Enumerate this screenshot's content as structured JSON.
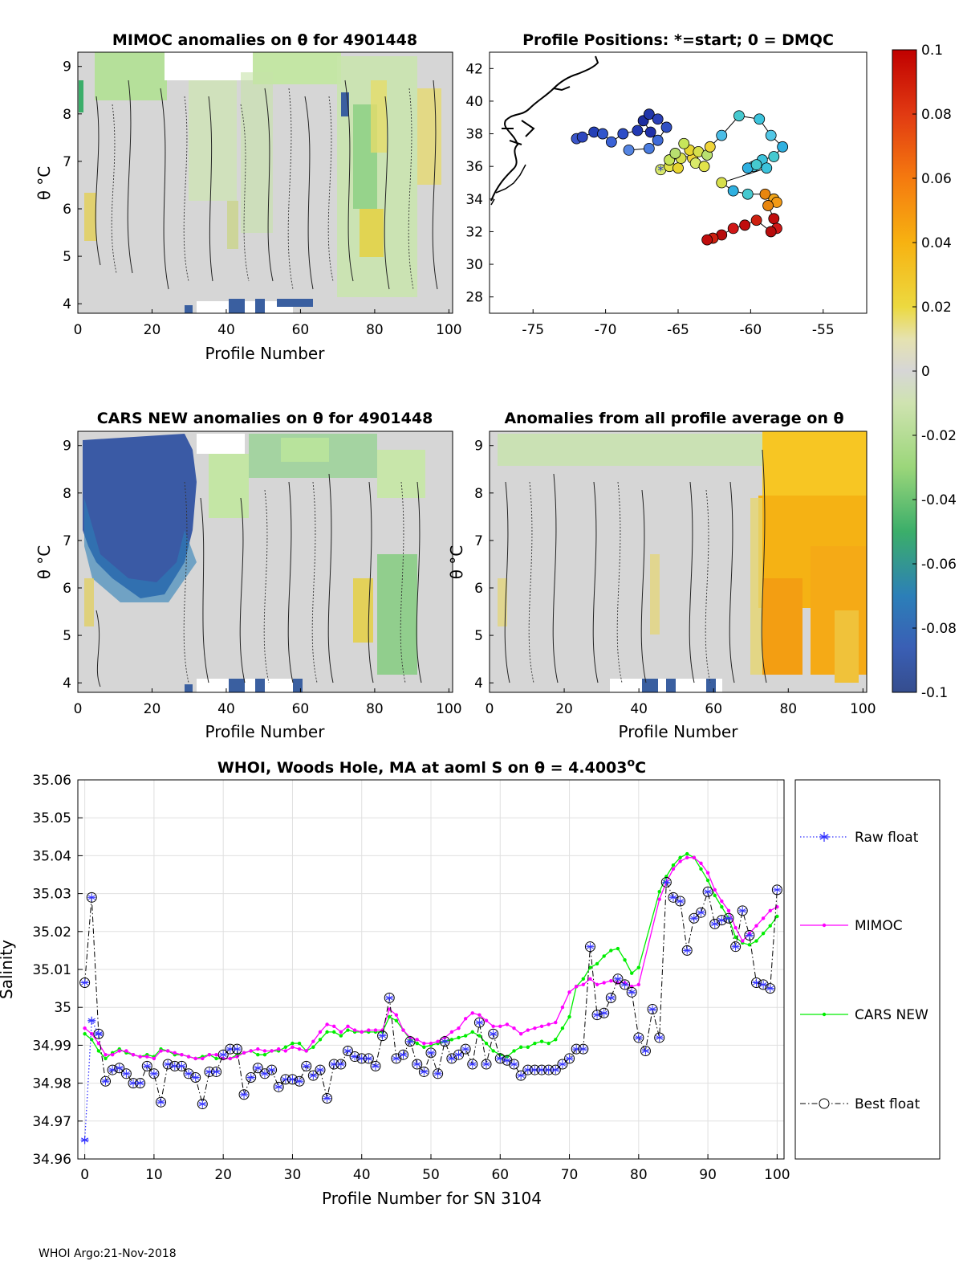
{
  "figure": {
    "footer": "WHOI Argo:21-Nov-2018",
    "colors": {
      "raw": "#3333ff",
      "mimoc": "#ff00ff",
      "cars": "#00ee00",
      "best": "#000000"
    }
  },
  "panels": {
    "mimoc": {
      "title": "MIMOC anomalies on θ  for 4901448",
      "xlabel": "Profile Number",
      "ylabel": "θ °C",
      "xticks": [
        "0",
        "20",
        "40",
        "60",
        "80",
        "100"
      ],
      "yticks": [
        "9",
        "8",
        "7",
        "6",
        "5",
        "4"
      ]
    },
    "positions": {
      "title": "Profile Positions: *=start; 0 = DMQC",
      "xticks": [
        "-75",
        "-70",
        "-65",
        "-60",
        "-55"
      ],
      "yticks": [
        "42",
        "40",
        "38",
        "36",
        "34",
        "32",
        "30",
        "28"
      ]
    },
    "colorbar": {
      "ticks": [
        "0.1",
        "0.08",
        "0.06",
        "0.04",
        "0.02",
        "0",
        "-0.02",
        "-0.04",
        "-0.06",
        "-0.08",
        "-0.1"
      ]
    },
    "cars": {
      "title": "CARS NEW anomalies on θ for 4901448",
      "xlabel": "Profile Number",
      "ylabel": "θ °C",
      "xticks": [
        "0",
        "20",
        "40",
        "60",
        "80",
        "100"
      ],
      "yticks": [
        "9",
        "8",
        "7",
        "6",
        "5",
        "4"
      ]
    },
    "average": {
      "title": "Anomalies from all profile average on θ",
      "xlabel": "Profile Number",
      "ylabel": "θ °C",
      "xticks": [
        "0",
        "20",
        "40",
        "60",
        "80",
        "100"
      ],
      "yticks": [
        "9",
        "8",
        "7",
        "6",
        "5",
        "4"
      ]
    }
  },
  "chart_data": [
    {
      "type": "heatmap",
      "title": "MIMOC anomalies on θ  for 4901448",
      "xlabel": "Profile Number",
      "ylabel": "θ °C",
      "xlim": [
        0,
        101
      ],
      "ylim": [
        3.8,
        9.3
      ],
      "clim": [
        -0.1,
        0.1
      ],
      "description_values": "mostly near-zero anomalies (-0.02 to 0.02), positive patches near profiles 2, 45, 75-80, 93-98"
    },
    {
      "type": "scatter",
      "title": "Profile Positions: *=start; 0 = DMQC",
      "xlim": [
        -78,
        -52
      ],
      "ylim": [
        27,
        43
      ],
      "points": [
        [
          -66.2,
          35.8
        ],
        [
          -65.6,
          36.0
        ],
        [
          -65.0,
          35.9
        ],
        [
          -65.6,
          36.4
        ],
        [
          -64.8,
          36.5
        ],
        [
          -65.2,
          36.8
        ],
        [
          -64.0,
          36.5
        ],
        [
          -63.8,
          36.2
        ],
        [
          -63.2,
          36.0
        ],
        [
          -64.2,
          37.0
        ],
        [
          -64.6,
          37.4
        ],
        [
          -63.6,
          36.9
        ],
        [
          -63.0,
          36.7
        ],
        [
          -62.8,
          37.2
        ],
        [
          -62.0,
          37.9
        ],
        [
          -60.8,
          39.1
        ],
        [
          -59.4,
          38.9
        ],
        [
          -58.6,
          37.9
        ],
        [
          -57.8,
          37.2
        ],
        [
          -58.4,
          36.6
        ],
        [
          -59.2,
          36.4
        ],
        [
          -59.8,
          36.0
        ],
        [
          -60.2,
          35.9
        ],
        [
          -59.6,
          36.1
        ],
        [
          -58.9,
          35.9
        ],
        [
          -62.0,
          35.0
        ],
        [
          -61.2,
          34.5
        ],
        [
          -60.2,
          34.3
        ],
        [
          -59.0,
          34.3
        ],
        [
          -58.4,
          34.0
        ],
        [
          -58.2,
          33.8
        ],
        [
          -58.8,
          33.6
        ],
        [
          -58.4,
          32.8
        ],
        [
          -58.2,
          32.2
        ],
        [
          -58.6,
          32.0
        ],
        [
          -59.6,
          32.7
        ],
        [
          -60.4,
          32.4
        ],
        [
          -61.2,
          32.2
        ],
        [
          -62.0,
          31.8
        ],
        [
          -62.6,
          31.6
        ],
        [
          -63.0,
          31.5
        ]
      ],
      "tracks_west": [
        [
          -72.0,
          37.7
        ],
        [
          -71.6,
          37.8
        ],
        [
          -70.8,
          38.1
        ],
        [
          -70.2,
          38.0
        ],
        [
          -69.6,
          37.5
        ],
        [
          -68.8,
          38.0
        ],
        [
          -67.8,
          38.2
        ],
        [
          -66.9,
          38.1
        ],
        [
          -67.4,
          38.8
        ],
        [
          -67.0,
          39.2
        ],
        [
          -66.4,
          38.9
        ],
        [
          -65.8,
          38.4
        ],
        [
          -66.4,
          37.6
        ],
        [
          -67.0,
          37.1
        ],
        [
          -68.4,
          37.0
        ]
      ],
      "start_marker": [
        -66.2,
        35.8
      ]
    },
    {
      "type": "heatmap",
      "title": "CARS NEW anomalies on θ for 4901448",
      "xlabel": "Profile Number",
      "ylabel": "θ °C",
      "xlim": [
        0,
        101
      ],
      "ylim": [
        3.8,
        9.3
      ],
      "clim": [
        -0.1,
        0.1
      ],
      "description_values": "strong negative anomaly (-0.1) for profiles 2-28 above θ 6.5; green negative patches near 72-95"
    },
    {
      "type": "heatmap",
      "title": "Anomalies from all profile average on θ",
      "xlabel": "Profile Number",
      "ylabel": "θ °C",
      "xlim": [
        0,
        101
      ],
      "ylim": [
        3.8,
        9.3
      ],
      "clim": [
        -0.1,
        0.1
      ],
      "description_values": "near-zero for profiles 0-72; positive (0.03-0.06) for profiles 73-101"
    },
    {
      "type": "line",
      "title": "WHOI, Woods Hole, MA at aoml S on θ = 4.4003°C",
      "xlabel": "Profile Number for SN 3104",
      "ylabel": "Salinity",
      "xlim": [
        -1,
        101
      ],
      "ylim": [
        34.96,
        35.06
      ],
      "xticks": [
        "0",
        "10",
        "20",
        "30",
        "40",
        "50",
        "60",
        "70",
        "80",
        "90",
        "100"
      ],
      "yticks": [
        "35.06",
        "35.05",
        "35.04",
        "35.03",
        "35.02",
        "35.01",
        "35",
        "34.99",
        "34.98",
        "34.97",
        "34.96"
      ],
      "series": [
        {
          "name": "Raw float",
          "x": [
            0,
            1,
            2
          ],
          "values": [
            34.965,
            34.9965,
            34.993
          ]
        },
        {
          "name": "MIMOC",
          "x": [
            0,
            1,
            2,
            3,
            4,
            5,
            6,
            7,
            8,
            9,
            10,
            11,
            12,
            13,
            14,
            15,
            16,
            17,
            18,
            19,
            20,
            21,
            22,
            23,
            24,
            25,
            26,
            27,
            28,
            29,
            30,
            31,
            32,
            33,
            34,
            35,
            36,
            37,
            38,
            39,
            40,
            41,
            42,
            43,
            44,
            45,
            46,
            47,
            48,
            49,
            50,
            51,
            52,
            53,
            54,
            55,
            56,
            57,
            58,
            59,
            60,
            61,
            62,
            63,
            64,
            65,
            66,
            67,
            68,
            69,
            70,
            71,
            72,
            73,
            74,
            75,
            76,
            77,
            78,
            79,
            80,
            83,
            84,
            85,
            86,
            87,
            88,
            89,
            90,
            91,
            92,
            93,
            94,
            95,
            96,
            97,
            98,
            99,
            100
          ],
          "values": [
            34.9945,
            34.993,
            34.9905,
            34.9875,
            34.9875,
            34.9885,
            34.9885,
            34.9875,
            34.987,
            34.987,
            34.9865,
            34.9885,
            34.9885,
            34.988,
            34.9875,
            34.987,
            34.9865,
            34.9865,
            34.9875,
            34.9875,
            34.9865,
            34.9865,
            34.987,
            34.988,
            34.9885,
            34.989,
            34.9885,
            34.9885,
            34.989,
            34.9885,
            34.9895,
            34.989,
            34.9885,
            34.991,
            34.9935,
            34.9955,
            34.995,
            34.9935,
            34.995,
            34.994,
            34.9935,
            34.994,
            34.994,
            34.994,
            34.9995,
            34.998,
            34.994,
            34.992,
            34.9915,
            34.9905,
            34.9905,
            34.991,
            34.992,
            34.9935,
            34.9945,
            34.997,
            34.9985,
            34.998,
            34.9965,
            34.995,
            34.995,
            34.9955,
            34.9945,
            34.993,
            34.994,
            34.9945,
            34.995,
            34.9955,
            34.996,
            35.0,
            35.004,
            35.0055,
            35.006,
            35.0075,
            35.006,
            35.0065,
            35.007,
            35.0065,
            35.0065,
            35.0055,
            35.006,
            35.0285,
            35.033,
            35.0365,
            35.0385,
            35.0395,
            35.0395,
            35.038,
            35.0355,
            35.031,
            35.028,
            35.0255,
            35.021,
            35.0175,
            35.0195,
            35.0215,
            35.0235,
            35.0255,
            35.0265
          ]
        },
        {
          "name": "CARS NEW",
          "x": [
            0,
            1,
            2,
            3,
            4,
            5,
            6,
            7,
            8,
            9,
            10,
            11,
            12,
            13,
            14,
            15,
            16,
            17,
            18,
            19,
            20,
            21,
            22,
            23,
            24,
            25,
            26,
            27,
            28,
            29,
            30,
            31,
            32,
            33,
            34,
            35,
            36,
            37,
            38,
            39,
            40,
            41,
            42,
            43,
            44,
            45,
            46,
            47,
            48,
            49,
            50,
            51,
            52,
            53,
            54,
            55,
            56,
            57,
            58,
            59,
            60,
            61,
            62,
            63,
            64,
            65,
            66,
            67,
            68,
            69,
            70,
            71,
            72,
            73,
            74,
            75,
            76,
            77,
            78,
            79,
            80,
            83,
            84,
            85,
            86,
            87,
            88,
            89,
            90,
            91,
            92,
            93,
            94,
            95,
            96,
            97,
            98,
            99,
            100
          ],
          "values": [
            34.993,
            34.9915,
            34.9885,
            34.9865,
            34.988,
            34.989,
            34.988,
            34.9875,
            34.987,
            34.9875,
            34.987,
            34.989,
            34.9885,
            34.9875,
            34.9875,
            34.987,
            34.9865,
            34.987,
            34.9875,
            34.9865,
            34.9865,
            34.9865,
            34.9875,
            34.988,
            34.9885,
            34.9875,
            34.9875,
            34.9885,
            34.9885,
            34.9895,
            34.9905,
            34.9905,
            34.9885,
            34.9895,
            34.9915,
            34.9935,
            34.9935,
            34.9925,
            34.994,
            34.9935,
            34.9935,
            34.9935,
            34.9935,
            34.9935,
            34.9975,
            34.9965,
            34.994,
            34.9915,
            34.9905,
            34.9895,
            34.99,
            34.9905,
            34.991,
            34.9915,
            34.992,
            34.9925,
            34.9935,
            34.9925,
            34.9905,
            34.9885,
            34.9875,
            34.987,
            34.9885,
            34.9895,
            34.9895,
            34.9905,
            34.991,
            34.9905,
            34.9915,
            34.9945,
            34.9975,
            35.0055,
            35.0075,
            35.0105,
            35.0115,
            35.0135,
            35.015,
            35.0155,
            35.0125,
            35.009,
            35.0105,
            35.0305,
            35.0345,
            35.0375,
            35.0395,
            35.0405,
            35.0395,
            35.0365,
            35.0335,
            35.0295,
            35.0265,
            35.0235,
            35.0185,
            35.017,
            35.0165,
            35.0175,
            35.0195,
            35.0215,
            35.024
          ]
        },
        {
          "name": "Best float",
          "x": [
            0,
            1,
            2,
            3,
            4,
            5,
            6,
            7,
            8,
            9,
            10,
            11,
            12,
            13,
            14,
            15,
            16,
            17,
            18,
            19,
            20,
            21,
            22,
            23,
            24,
            25,
            26,
            27,
            28,
            29,
            30,
            31,
            32,
            33,
            34,
            35,
            36,
            37,
            38,
            39,
            40,
            41,
            42,
            43,
            44,
            45,
            46,
            47,
            48,
            49,
            50,
            51,
            52,
            53,
            54,
            55,
            56,
            57,
            58,
            59,
            60,
            61,
            62,
            63,
            64,
            65,
            66,
            67,
            68,
            69,
            70,
            71,
            72,
            73,
            74,
            75,
            76,
            77,
            78,
            79,
            80,
            81,
            82,
            83,
            84,
            85,
            86,
            87,
            88,
            89,
            90,
            91,
            92,
            93,
            94,
            95,
            96,
            97,
            98,
            99,
            100
          ],
          "values": [
            35.0065,
            35.029,
            34.993,
            34.9805,
            34.9835,
            34.984,
            34.9825,
            34.98,
            34.98,
            34.9845,
            34.9825,
            34.975,
            34.985,
            34.9845,
            34.9845,
            34.9825,
            34.9815,
            34.9745,
            34.983,
            34.983,
            34.9875,
            34.989,
            34.989,
            34.977,
            34.9815,
            34.984,
            34.9825,
            34.9835,
            34.979,
            34.981,
            34.981,
            34.9805,
            34.9845,
            34.982,
            34.9835,
            34.976,
            34.985,
            34.985,
            34.9885,
            34.987,
            34.9865,
            34.9865,
            34.9845,
            34.9925,
            35.0025,
            34.9865,
            34.9875,
            34.991,
            34.985,
            34.983,
            34.988,
            34.9825,
            34.991,
            34.9865,
            34.9875,
            34.989,
            34.985,
            34.996,
            34.985,
            34.993,
            34.9865,
            34.986,
            34.985,
            34.982,
            34.9835,
            34.9835,
            34.9835,
            34.9835,
            34.9835,
            34.985,
            34.9865,
            34.989,
            34.989,
            35.016,
            34.998,
            34.9985,
            35.0025,
            35.0075,
            35.006,
            35.004,
            34.992,
            34.9885,
            34.9995,
            34.992,
            35.033,
            35.029,
            35.028,
            35.015,
            35.0235,
            35.025,
            35.0305,
            35.022,
            35.023,
            35.0235,
            35.016,
            35.0255,
            35.019,
            35.0065,
            35.006,
            35.005,
            35.031
          ]
        }
      ],
      "legend": [
        "Raw float",
        "MIMOC",
        "CARS NEW",
        "Best float"
      ]
    }
  ]
}
